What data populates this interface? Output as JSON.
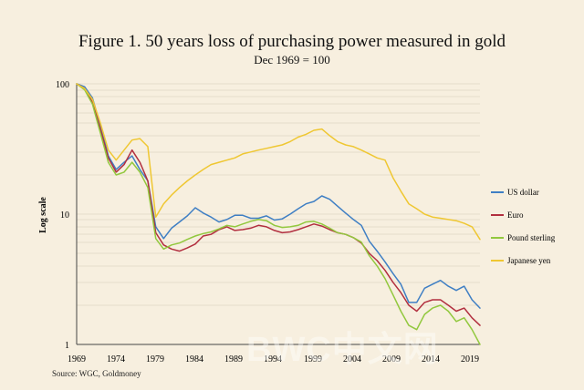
{
  "chart_data": {
    "type": "line",
    "title": "Figure 1. 50 years loss of purchasing power measured in gold",
    "subtitle": "Dec 1969 = 100",
    "xlabel": "",
    "ylabel": "Log scale",
    "xlim": [
      1969,
      2020
    ],
    "ylim": [
      1,
      100
    ],
    "x_ticks": [
      "1969",
      "1974",
      "1979",
      "1984",
      "1989",
      "1994",
      "1999",
      "2004",
      "2009",
      "2014",
      "2019"
    ],
    "y_ticks": [
      "100",
      "10",
      "1"
    ],
    "grid": true,
    "legend_position": "right",
    "source": "Source: WGC, Goldmoney",
    "watermark": "BWC中文网",
    "series": [
      {
        "name": "US dollar",
        "color": "#3f7fc4",
        "x": [
          1969,
          1970,
          1971,
          1972,
          1973,
          1974,
          1975,
          1976,
          1977,
          1978,
          1979,
          1980,
          1981,
          1982,
          1983,
          1984,
          1985,
          1986,
          1987,
          1988,
          1989,
          1990,
          1991,
          1992,
          1993,
          1994,
          1995,
          1996,
          1997,
          1998,
          1999,
          2000,
          2001,
          2002,
          2003,
          2004,
          2005,
          2006,
          2007,
          2008,
          2009,
          2010,
          2011,
          2012,
          2013,
          2014,
          2015,
          2016,
          2017,
          2018,
          2019,
          2020
        ],
        "values": [
          100,
          95,
          78,
          48,
          28,
          22,
          25,
          28,
          22,
          18,
          8,
          6.5,
          7.8,
          8.7,
          9.7,
          11.2,
          10.2,
          9.5,
          8.7,
          9.1,
          9.8,
          9.8,
          9.3,
          9.3,
          9.7,
          9.0,
          9.2,
          10.0,
          11.0,
          12.0,
          12.5,
          13.8,
          13.0,
          11.5,
          10.2,
          9.1,
          8.2,
          6.2,
          5.2,
          4.3,
          3.5,
          2.9,
          2.1,
          2.1,
          2.7,
          2.9,
          3.1,
          2.8,
          2.6,
          2.8,
          2.2,
          1.9
        ]
      },
      {
        "name": "Euro",
        "color": "#b22f3f",
        "x": [
          1969,
          1970,
          1971,
          1972,
          1973,
          1974,
          1975,
          1976,
          1977,
          1978,
          1979,
          1980,
          1981,
          1982,
          1983,
          1984,
          1985,
          1986,
          1987,
          1988,
          1989,
          1990,
          1991,
          1992,
          1993,
          1994,
          1995,
          1996,
          1997,
          1998,
          1999,
          2000,
          2001,
          2002,
          2003,
          2004,
          2005,
          2006,
          2007,
          2008,
          2009,
          2010,
          2011,
          2012,
          2013,
          2014,
          2015,
          2016,
          2017,
          2018,
          2019,
          2020
        ],
        "values": [
          100,
          92,
          72,
          45,
          27,
          21,
          24,
          31,
          25,
          18,
          7.2,
          5.8,
          5.4,
          5.2,
          5.5,
          5.9,
          6.8,
          7.0,
          7.6,
          8.0,
          7.5,
          7.6,
          7.8,
          8.2,
          8.0,
          7.5,
          7.2,
          7.3,
          7.6,
          8.0,
          8.4,
          8.1,
          7.6,
          7.2,
          7.0,
          6.6,
          6.0,
          5.0,
          4.4,
          3.7,
          3.0,
          2.5,
          2.0,
          1.8,
          2.1,
          2.2,
          2.2,
          2.0,
          1.8,
          1.9,
          1.6,
          1.4
        ]
      },
      {
        "name": "Pound sterling",
        "color": "#92c83e",
        "x": [
          1969,
          1970,
          1971,
          1972,
          1973,
          1974,
          1975,
          1976,
          1977,
          1978,
          1979,
          1980,
          1981,
          1982,
          1983,
          1984,
          1985,
          1986,
          1987,
          1988,
          1989,
          1990,
          1991,
          1992,
          1993,
          1994,
          1995,
          1996,
          1997,
          1998,
          1999,
          2000,
          2001,
          2002,
          2003,
          2004,
          2005,
          2006,
          2007,
          2008,
          2009,
          2010,
          2011,
          2012,
          2013,
          2014,
          2015,
          2016,
          2017,
          2018,
          2019,
          2020
        ],
        "values": [
          100,
          90,
          70,
          42,
          25,
          20,
          21,
          25,
          21,
          16,
          6.5,
          5.4,
          5.8,
          6.0,
          6.4,
          6.8,
          7.1,
          7.3,
          7.7,
          8.2,
          8.0,
          8.4,
          8.8,
          9.1,
          8.9,
          8.2,
          7.9,
          8.0,
          8.2,
          8.7,
          8.8,
          8.4,
          7.8,
          7.2,
          7.0,
          6.6,
          6.1,
          4.8,
          4.0,
          3.2,
          2.4,
          1.8,
          1.4,
          1.3,
          1.7,
          1.9,
          2.0,
          1.8,
          1.5,
          1.6,
          1.3,
          1.0
        ]
      },
      {
        "name": "Japanese yen",
        "color": "#efc732",
        "x": [
          1969,
          1970,
          1971,
          1972,
          1973,
          1974,
          1975,
          1976,
          1977,
          1978,
          1979,
          1980,
          1981,
          1982,
          1983,
          1984,
          1985,
          1986,
          1987,
          1988,
          1989,
          1990,
          1991,
          1992,
          1993,
          1994,
          1995,
          1996,
          1997,
          1998,
          1999,
          2000,
          2001,
          2002,
          2003,
          2004,
          2005,
          2006,
          2007,
          2008,
          2009,
          2010,
          2011,
          2012,
          2013,
          2014,
          2015,
          2016,
          2017,
          2018,
          2019,
          2020
        ],
        "values": [
          100,
          92,
          76,
          50,
          31,
          26,
          31,
          37,
          38,
          33,
          9.5,
          12,
          14,
          16,
          18,
          20,
          22,
          24,
          25,
          26,
          27,
          29,
          30,
          31,
          32,
          33,
          34,
          36,
          39,
          41,
          44,
          45,
          40,
          36,
          34,
          33,
          31,
          29,
          27,
          26,
          19,
          15,
          12,
          11,
          10,
          9.5,
          9.3,
          9.1,
          8.9,
          8.5,
          8.0,
          6.4
        ]
      }
    ]
  }
}
